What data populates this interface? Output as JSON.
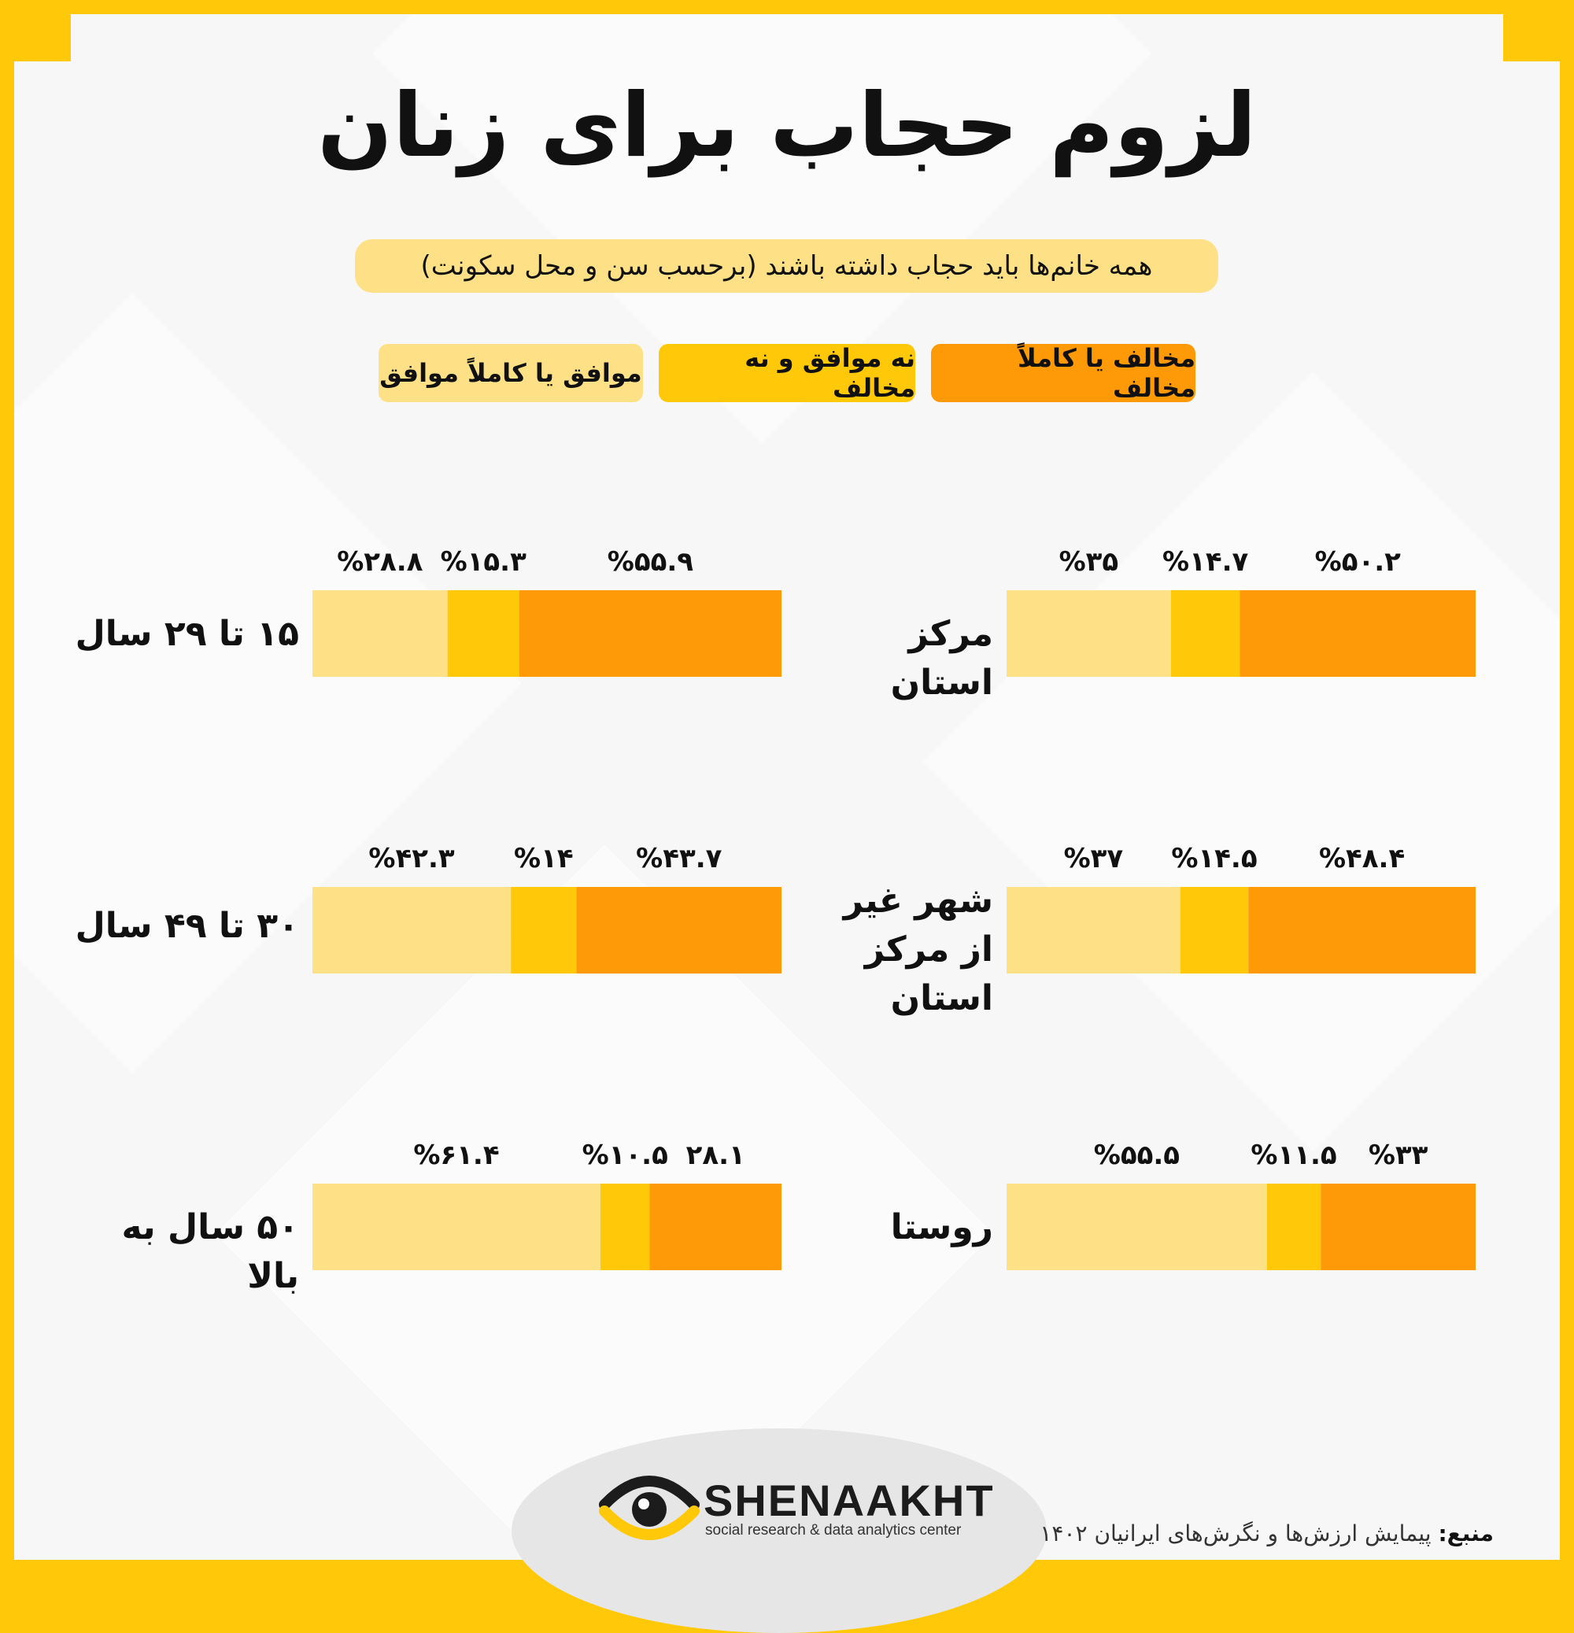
{
  "title": "لزوم حجاب برای زنان",
  "subtitle": "همه خانم‌ها باید حجاب داشته باشند (برحسب سن و محل سکونت)",
  "legend": [
    {
      "label": "مخالف یا کاملاً مخالف",
      "color": "#fe9907"
    },
    {
      "label": "نه موافق و نه مخالف",
      "color": "#ffc808"
    },
    {
      "label": "موافق یا کاملاً موافق",
      "color": "#fee186"
    }
  ],
  "colors": {
    "oppose": "#fe9907",
    "neutral": "#ffc808",
    "agree": "#fee186",
    "accent": "#ffc808"
  },
  "brand": {
    "name": "SHENAAKHT",
    "tagline": "social research & data analytics center"
  },
  "source": {
    "label": "منبع:",
    "text": "پیمایش ارزش‌ها و نگرش‌های ایرانیان ۱۴۰۲"
  },
  "chart_data": {
    "type": "bar",
    "stacked": true,
    "orientation": "horizontal",
    "series_order": [
      "موافق یا کاملاً موافق",
      "نه موافق و نه مخالف",
      "مخالف یا کاملاً مخالف"
    ],
    "groups": [
      {
        "category": "۱۵ تا ۲۹ سال",
        "values": [
          28.8,
          15.3,
          55.9
        ],
        "labels": [
          "%۲۸.۸",
          "%۱۵.۳",
          "%۵۵.۹"
        ]
      },
      {
        "category": "۳۰ تا ۴۹ سال",
        "values": [
          42.3,
          14,
          43.7
        ],
        "labels": [
          "%۴۲.۳",
          "%۱۴",
          "%۴۳.۷"
        ]
      },
      {
        "category": "۵۰ سال به بالا",
        "values": [
          61.4,
          10.5,
          28.1
        ],
        "labels": [
          "%۶۱.۴",
          "%۱۰.۵",
          "۲۸.۱"
        ]
      },
      {
        "category": "مرکز استان",
        "values": [
          35,
          14.7,
          50.2
        ],
        "labels": [
          "%۳۵",
          "%۱۴.۷",
          "%۵۰.۲"
        ]
      },
      {
        "category": "شهر غیر از مرکز استان",
        "values": [
          37,
          14.5,
          48.4
        ],
        "labels": [
          "%۳۷",
          "%۱۴.۵",
          "%۴۸.۴"
        ]
      },
      {
        "category": "روستا",
        "values": [
          55.5,
          11.5,
          33
        ],
        "labels": [
          "%۵۵.۵",
          "%۱۱.۵",
          "%۳۳"
        ]
      }
    ]
  }
}
